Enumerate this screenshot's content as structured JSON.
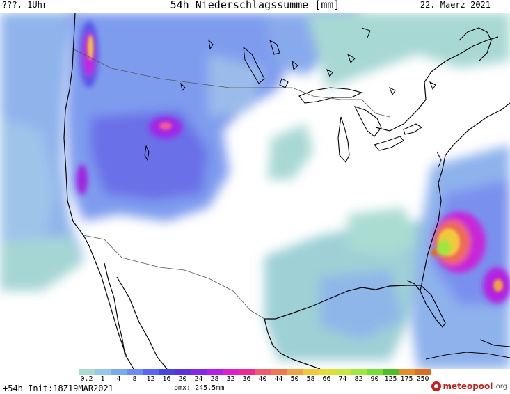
{
  "header": {
    "left": "???, 1Uhr",
    "title": "54h Niederschlagssumme [mm]",
    "date": "22. Maerz 2021"
  },
  "legend": {
    "labels": [
      "0.2",
      "1",
      "4",
      "8",
      "12",
      "16",
      "20",
      "24",
      "28",
      "32",
      "36",
      "40",
      "44",
      "50",
      "58",
      "66",
      "74",
      "82",
      "90",
      "125",
      "175",
      "250"
    ],
    "colors": [
      "#aadcd2",
      "#96c8e6",
      "#7ca8ee",
      "#6f8cf5",
      "#5a66f0",
      "#4646dc",
      "#5a32dc",
      "#8228e6",
      "#b41ee6",
      "#dc1ed2",
      "#f02896",
      "#f05a6e",
      "#f07850",
      "#f0a046",
      "#f0c83c",
      "#e6dc32",
      "#c8e63c",
      "#a0e63c",
      "#78dc32",
      "#4cbe28",
      "#e68c28",
      "#dc6e1e"
    ]
  },
  "footer": {
    "init": "+54h Init:18Z19MAR2021",
    "pmx": "pmx: 245.5mm",
    "logo_name": "meteopool",
    "logo_tld": ".org"
  },
  "colors": {
    "background": "#ffffff",
    "coast": "#000000"
  }
}
